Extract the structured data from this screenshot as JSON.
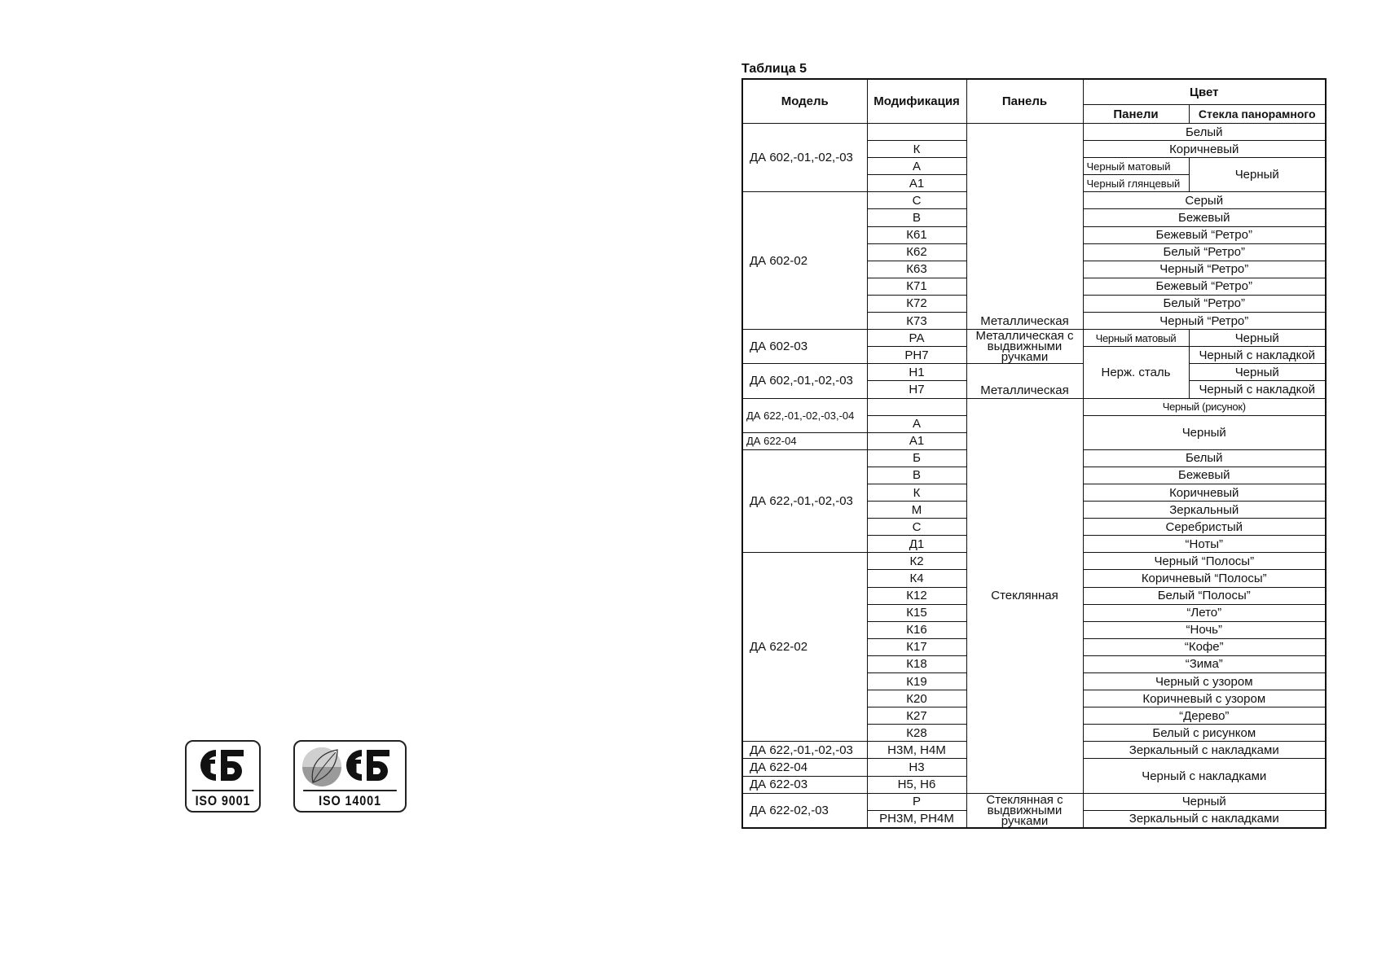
{
  "title": "Таблица 5",
  "header": {
    "model": "Модель",
    "modification": "Модификация",
    "panel": "Панель",
    "color": "Цвет",
    "color_panel": "Панели",
    "color_glass": "Стекла панорамного"
  },
  "rows": [
    [
      {
        "t": "ДА 602,-01,-02,-03",
        "rs": 4,
        "c": "model"
      },
      {
        "t": ""
      },
      {
        "t": "Металлическая",
        "rs": 12,
        "c": "bottom"
      },
      {
        "t": "Белый",
        "cs": 2
      }
    ],
    [
      {
        "t": "К"
      },
      {
        "t": "Коричневый",
        "cs": 2
      }
    ],
    [
      {
        "t": "А"
      },
      {
        "t": "Черный матовый",
        "c": "left-small"
      },
      {
        "t": "Черный",
        "rs": 2
      }
    ],
    [
      {
        "t": "А1"
      },
      {
        "t": "Черный глянцевый",
        "c": "left-small"
      }
    ],
    [
      {
        "t": "ДА 602-02",
        "rs": 8,
        "c": "model"
      },
      {
        "t": "С"
      },
      {
        "t": "Серый",
        "cs": 2
      }
    ],
    [
      {
        "t": "В"
      },
      {
        "t": "Бежевый",
        "cs": 2
      }
    ],
    [
      {
        "t": "К61"
      },
      {
        "t": "Бежевый “Ретро”",
        "cs": 2
      }
    ],
    [
      {
        "t": "К62"
      },
      {
        "t": "Белый “Ретро”",
        "cs": 2
      }
    ],
    [
      {
        "t": "К63"
      },
      {
        "t": "Черный “Ретро”",
        "cs": 2
      }
    ],
    [
      {
        "t": "К71"
      },
      {
        "t": "Бежевый “Ретро”",
        "cs": 2
      }
    ],
    [
      {
        "t": "К72"
      },
      {
        "t": "Белый “Ретро”",
        "cs": 2
      }
    ],
    [
      {
        "t": "К73"
      },
      {
        "t": "Черный “Ретро”",
        "cs": 2
      }
    ],
    [
      {
        "t": "ДА 602-03",
        "rs": 2,
        "c": "model"
      },
      {
        "t": "РА"
      },
      {
        "t": "Металлическая с выдвижными ручками",
        "rs": 2,
        "c": "wrap"
      },
      {
        "t": "Черный матовый",
        "c": "small"
      },
      {
        "t": "Черный"
      }
    ],
    [
      {
        "t": "РН7"
      },
      {
        "t": "Нерж. сталь",
        "rs": 3
      },
      {
        "t": "Черный с накладкой"
      }
    ],
    [
      {
        "t": "ДА 602,-01,-02,-03",
        "rs": 2,
        "c": "model"
      },
      {
        "t": "Н1"
      },
      {
        "t": "Металлическая",
        "rs": 2,
        "c": "bottom"
      },
      {
        "t": "Черный"
      }
    ],
    [
      {
        "t": "Н7"
      },
      {
        "t": "Черный с накладкой"
      }
    ],
    [
      {
        "t": "ДА 622,-01,-02,-03,-04",
        "rs": 2,
        "c": "left-small"
      },
      {
        "t": ""
      },
      {
        "t": "Стеклянная",
        "rs": 23
      },
      {
        "t": "Черный (рисунок)",
        "cs": 2,
        "c": "small"
      }
    ],
    [
      {
        "t": "А"
      },
      {
        "t": "Черный",
        "cs": 2,
        "rs": 2
      }
    ],
    [
      {
        "t": "ДА 622-04",
        "c": "left-small"
      },
      {
        "t": "А1"
      }
    ],
    [
      {
        "t": "ДА 622,-01,-02,-03",
        "rs": 6,
        "c": "model"
      },
      {
        "t": "Б"
      },
      {
        "t": "Белый",
        "cs": 2
      }
    ],
    [
      {
        "t": "В"
      },
      {
        "t": "Бежевый",
        "cs": 2
      }
    ],
    [
      {
        "t": "К"
      },
      {
        "t": "Коричневый",
        "cs": 2
      }
    ],
    [
      {
        "t": "М"
      },
      {
        "t": "Зеркальный",
        "cs": 2
      }
    ],
    [
      {
        "t": "С"
      },
      {
        "t": "Серебристый",
        "cs": 2
      }
    ],
    [
      {
        "t": "Д1"
      },
      {
        "t": "“Ноты”",
        "cs": 2
      }
    ],
    [
      {
        "t": "ДА 622-02",
        "rs": 11,
        "c": "model"
      },
      {
        "t": "К2"
      },
      {
        "t": "Черный “Полосы”",
        "cs": 2
      }
    ],
    [
      {
        "t": "К4"
      },
      {
        "t": "Коричневый “Полосы”",
        "cs": 2
      }
    ],
    [
      {
        "t": "К12"
      },
      {
        "t": "Белый “Полосы”",
        "cs": 2
      }
    ],
    [
      {
        "t": "К15"
      },
      {
        "t": "“Лето”",
        "cs": 2
      }
    ],
    [
      {
        "t": "К16"
      },
      {
        "t": "“Ночь”",
        "cs": 2
      }
    ],
    [
      {
        "t": "К17"
      },
      {
        "t": "“Кофе”",
        "cs": 2
      }
    ],
    [
      {
        "t": "К18"
      },
      {
        "t": "“Зима”",
        "cs": 2
      }
    ],
    [
      {
        "t": "К19"
      },
      {
        "t": "Черный с узором",
        "cs": 2
      }
    ],
    [
      {
        "t": "К20"
      },
      {
        "t": "Коричневый с узором",
        "cs": 2
      }
    ],
    [
      {
        "t": "К27"
      },
      {
        "t": "“Дерево”",
        "cs": 2
      }
    ],
    [
      {
        "t": "К28"
      },
      {
        "t": "Белый с рисунком",
        "cs": 2
      }
    ],
    [
      {
        "t": "ДА 622,-01,-02,-03",
        "c": "model"
      },
      {
        "t": "Н3М, Н4М"
      },
      {
        "t": "Зеркальный с накладками",
        "cs": 2
      }
    ],
    [
      {
        "t": "ДА 622-04",
        "c": "model"
      },
      {
        "t": "Н3"
      },
      {
        "t": "Черный с накладками",
        "cs": 2,
        "rs": 2
      }
    ],
    [
      {
        "t": "ДА 622-03",
        "c": "model"
      },
      {
        "t": "Н5, Н6"
      }
    ],
    [
      {
        "t": "ДА 622-02,-03",
        "rs": 2,
        "c": "model"
      },
      {
        "t": "Р"
      },
      {
        "t": "Стеклянная с выдвижными ручками",
        "rs": 2,
        "c": "wrap"
      },
      {
        "t": "Черный",
        "cs": 2
      }
    ],
    [
      {
        "t": "РН3М, РН4М"
      },
      {
        "t": "Зеркальный с накладками",
        "cs": 2
      }
    ]
  ],
  "logos": [
    {
      "name": "СТБ",
      "caption": "ISO  9001"
    },
    {
      "name": "СТБ eco",
      "caption": "ISO 14001"
    }
  ]
}
